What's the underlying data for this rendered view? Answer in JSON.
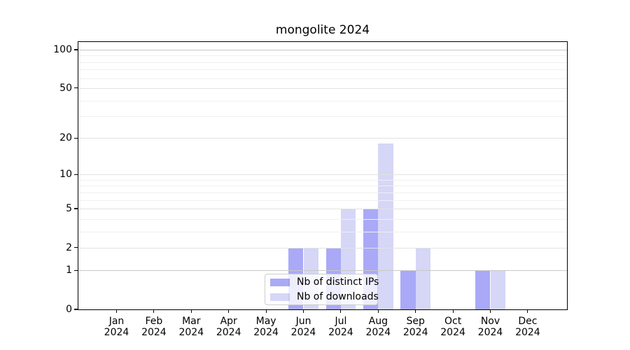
{
  "chart_data": {
    "type": "bar",
    "title": "mongolite 2024",
    "categories": [
      "Jan",
      "Feb",
      "Mar",
      "Apr",
      "May",
      "Jun",
      "Jul",
      "Aug",
      "Sep",
      "Oct",
      "Nov",
      "Dec"
    ],
    "year_label": "2024",
    "series": [
      {
        "name": "Nb of distinct IPs",
        "color": "rgba(8,8,235,0.35)",
        "values": [
          0,
          0,
          0,
          0,
          0,
          2,
          2,
          5,
          1,
          0,
          1,
          0
        ]
      },
      {
        "name": "Nb of downloads",
        "color": "rgba(10,10,210,0.17)",
        "values": [
          0,
          0,
          0,
          0,
          0,
          2,
          5,
          18,
          2,
          0,
          1,
          0
        ]
      }
    ],
    "y_axis": {
      "scale": "log1p",
      "major_ticks": [
        0,
        1,
        2,
        5,
        10,
        20,
        50,
        100
      ],
      "minor_gridlines": [
        3,
        4,
        6,
        7,
        8,
        9,
        30,
        40,
        60,
        70,
        80,
        90
      ],
      "ylim": [
        0,
        115
      ]
    },
    "xlabel": "",
    "ylabel": "",
    "grid": true,
    "legend_position": "lower center"
  },
  "colors": {
    "bar_distinct_ips": "rgba(8,8,235,0.35)",
    "bar_downloads": "rgba(10,10,210,0.17)",
    "grid_major_strong": "#c8c8c8",
    "grid_major": "#e2e2e2",
    "grid_minor": "#f0f0f0",
    "spine": "#000000",
    "legend_border": "#cccccc",
    "text": "#000000",
    "background": "#ffffff"
  }
}
